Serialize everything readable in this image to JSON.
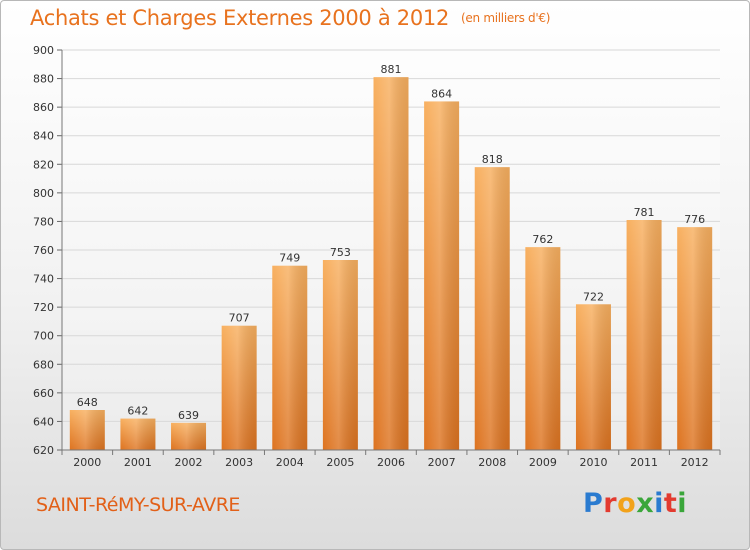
{
  "title": "Achats et Charges Externes 2000 à 2012",
  "unit_note": "(en milliers d'€)",
  "place": "SAINT-RéMY-SUR-AVRE",
  "logo": {
    "text": "Proxiti",
    "letter_colors": [
      "#2a7bd0",
      "#e33a2f",
      "#f2a21a",
      "#3aa63a",
      "#2a7bd0",
      "#e33a2f",
      "#3aa63a"
    ]
  },
  "colors": {
    "bar_light": "#f8b060",
    "bar_dark": "#dd7320",
    "title": "#e8721e",
    "grid": "#d8d8d8"
  },
  "chart_data": {
    "type": "bar",
    "categories": [
      "2000",
      "2001",
      "2002",
      "2003",
      "2004",
      "2005",
      "2006",
      "2007",
      "2008",
      "2009",
      "2010",
      "2011",
      "2012"
    ],
    "values": [
      648,
      642,
      639,
      707,
      749,
      753,
      881,
      864,
      818,
      762,
      722,
      781,
      776
    ],
    "ylim": [
      620,
      900
    ],
    "yticks": [
      620,
      640,
      660,
      680,
      700,
      720,
      740,
      760,
      780,
      800,
      820,
      840,
      860,
      880,
      900
    ],
    "grid": true
  }
}
